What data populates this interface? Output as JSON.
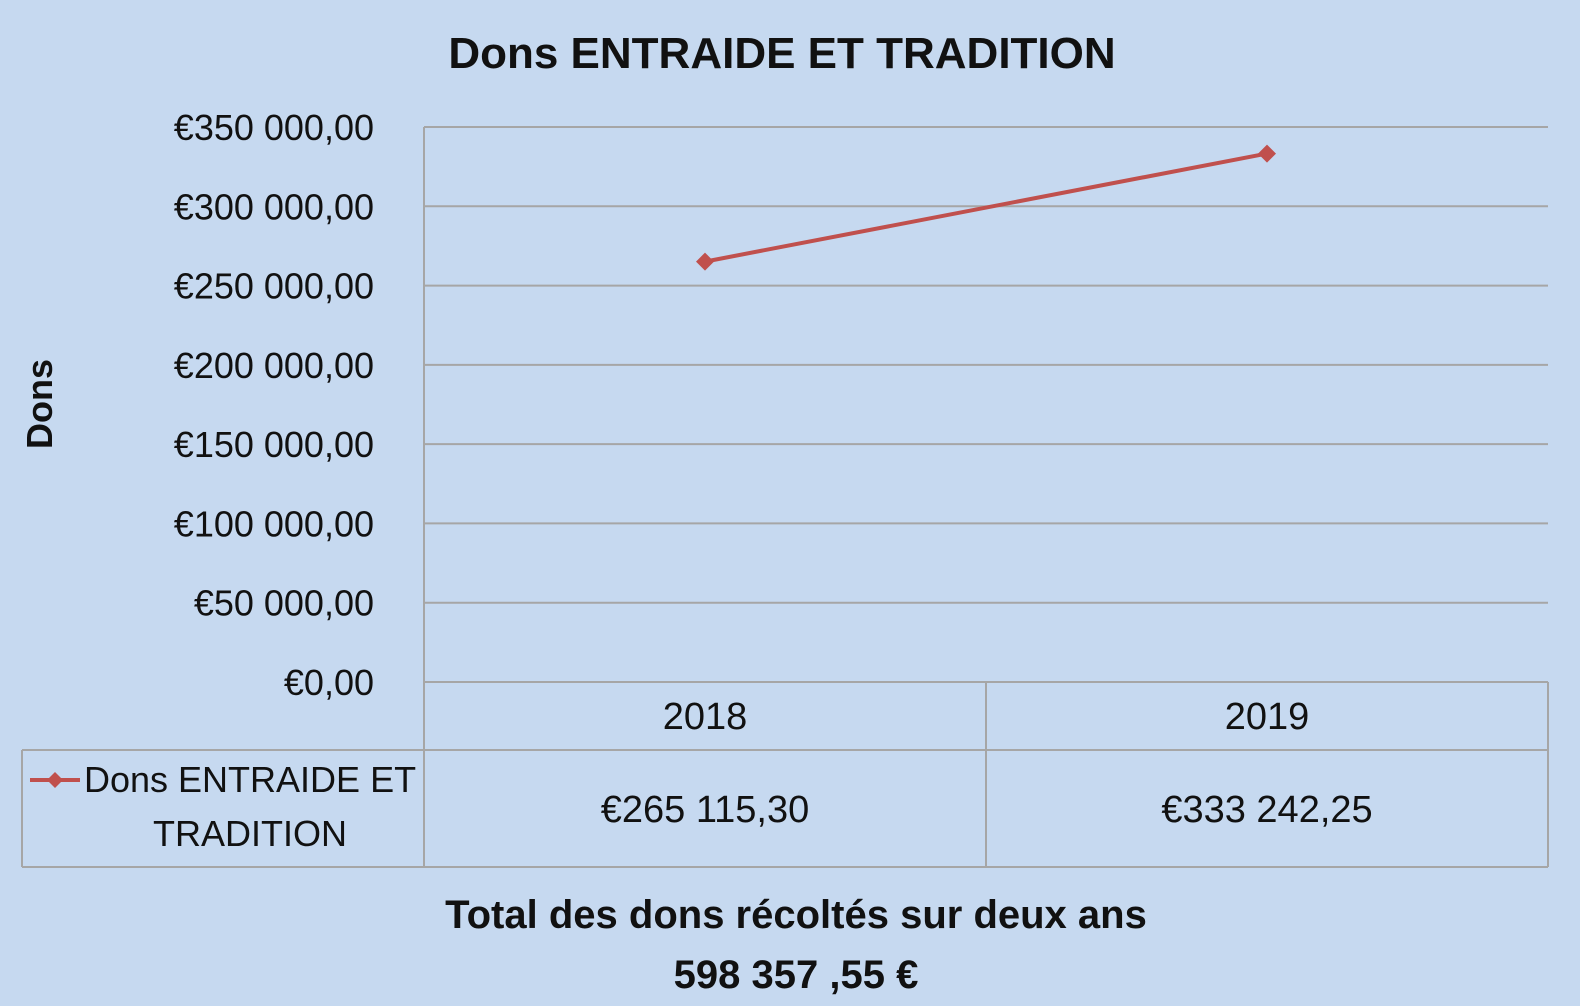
{
  "chart_data": {
    "type": "line",
    "title": "Dons ENTRAIDE ET TRADITION",
    "ylabel": "Dons",
    "xlabel": "",
    "categories": [
      "2018",
      "2019"
    ],
    "series": [
      {
        "name": "Dons ENTRAIDE ET TRADITION",
        "name_lines": [
          "Dons ENTRAIDE ET",
          "TRADITION"
        ],
        "values": [
          265115.3,
          333242.25
        ],
        "value_labels": [
          "€265 115,30",
          "€333 242,25"
        ],
        "color": "#c0504d",
        "marker": "diamond"
      }
    ],
    "ylim": [
      0,
      350000
    ],
    "yticks": [
      0,
      50000,
      100000,
      150000,
      200000,
      250000,
      300000,
      350000
    ],
    "ytick_labels": [
      "€0,00",
      "€50 000,00",
      "€100 000,00",
      "€150 000,00",
      "€200 000,00",
      "€250 000,00",
      "€300 000,00",
      "€350 000,00"
    ],
    "grid": true,
    "data_table": true,
    "background": "#c6d9f0"
  },
  "footer": {
    "line1": "Total des dons récoltés sur  deux ans",
    "line2": "598 357 ,55 €"
  }
}
